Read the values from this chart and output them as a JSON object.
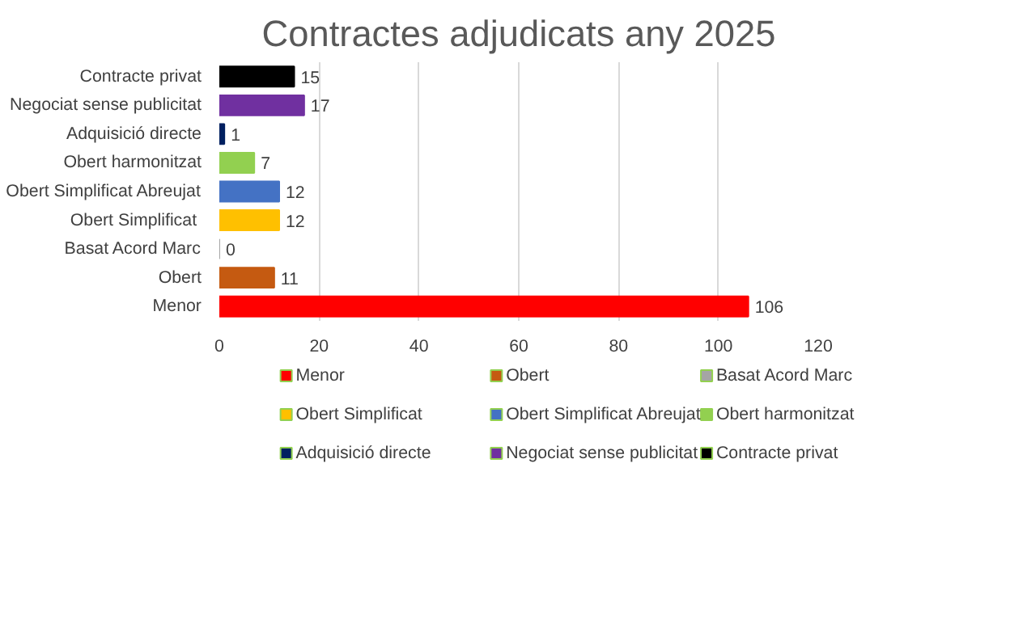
{
  "chart_data": {
    "type": "bar",
    "orientation": "horizontal",
    "title": "Contractes adjudicats any 2025",
    "categories": [
      "Contracte privat",
      "Negociat sense publicitat",
      "Adquisició directe",
      "Obert harmonitzat",
      "Obert Simplificat Abreujat",
      "Obert  Simplificat",
      "Basat Acord Marc",
      "Obert",
      "Menor"
    ],
    "series": [
      {
        "name": "Menor",
        "color": "#ff0000",
        "values": [
          null,
          null,
          null,
          null,
          null,
          null,
          null,
          null,
          106
        ]
      },
      {
        "name": "Obert",
        "color": "#c55a11",
        "values": [
          null,
          null,
          null,
          null,
          null,
          null,
          null,
          11,
          null
        ]
      },
      {
        "name": "Basat Acord Marc",
        "color": "#a5a5a5",
        "values": [
          null,
          null,
          null,
          null,
          null,
          null,
          0,
          null,
          null
        ]
      },
      {
        "name": "Obert  Simplificat",
        "color": "#ffc000",
        "values": [
          null,
          null,
          null,
          null,
          null,
          12,
          null,
          null,
          null
        ]
      },
      {
        "name": "Obert Simplificat Abreujat",
        "color": "#4472c4",
        "values": [
          null,
          null,
          null,
          null,
          12,
          null,
          null,
          null,
          null
        ]
      },
      {
        "name": "Obert harmonitzat",
        "color": "#92d050",
        "values": [
          null,
          null,
          null,
          7,
          null,
          null,
          null,
          null,
          null
        ]
      },
      {
        "name": "Adquisició directe",
        "color": "#002060",
        "values": [
          null,
          null,
          1,
          null,
          null,
          null,
          null,
          null,
          null
        ]
      },
      {
        "name": "Negociat sense publicitat",
        "color": "#7030a0",
        "values": [
          null,
          17,
          null,
          null,
          null,
          null,
          null,
          null,
          null
        ]
      },
      {
        "name": "Contracte privat",
        "color": "#000000",
        "values": [
          15,
          null,
          null,
          null,
          null,
          null,
          null,
          null,
          null
        ]
      }
    ],
    "xlim": [
      0,
      120
    ],
    "xticks": [
      0,
      20,
      40,
      60,
      80,
      100,
      120
    ],
    "grid": "x",
    "data_labels": true,
    "legend": "bottom"
  }
}
